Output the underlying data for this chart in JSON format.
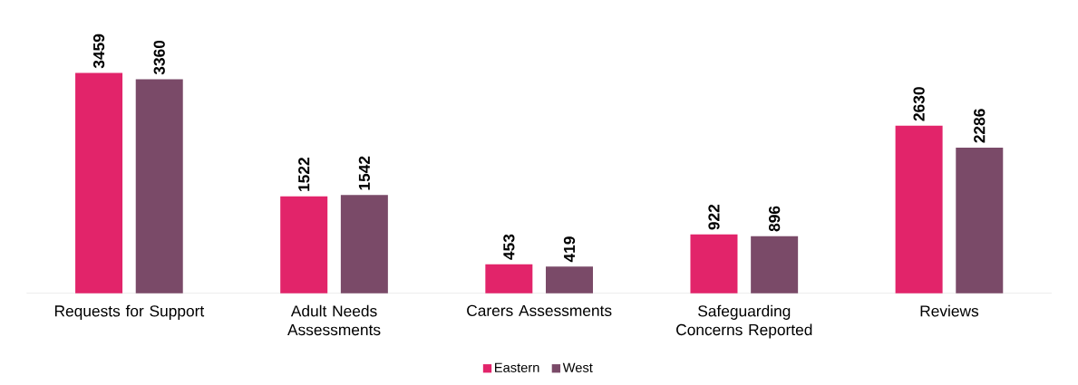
{
  "chart_data": {
    "type": "bar",
    "categories": [
      "Requests for Support",
      "Adult Needs Assessments",
      "Carers Assessments",
      "Safeguarding Concerns Reported",
      "Reviews"
    ],
    "series": [
      {
        "name": "Eastern",
        "color": "#e2246a",
        "values": [
          3459,
          1522,
          453,
          922,
          2630
        ]
      },
      {
        "name": "West",
        "color": "#7a4a68",
        "values": [
          3360,
          1542,
          419,
          896,
          2286
        ]
      }
    ],
    "data_labels": true,
    "legend": "bottom"
  }
}
